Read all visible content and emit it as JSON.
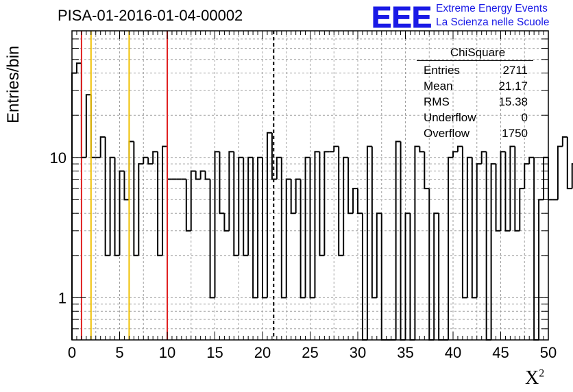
{
  "header": {
    "title": "PISA-01-2016-01-04-00002",
    "logo_mark": "EEE",
    "logo_line1": "Extreme Energy Events",
    "logo_line2": "La Scienza nelle Scuole"
  },
  "stats": {
    "title": "ChiSquare",
    "rows": [
      {
        "label": "Entries",
        "value": "2711"
      },
      {
        "label": "Mean",
        "value": "21.17"
      },
      {
        "label": "RMS",
        "value": "15.38"
      },
      {
        "label": "Underflow",
        "value": "0"
      },
      {
        "label": "Overflow",
        "value": "1750"
      }
    ]
  },
  "colors": {
    "histogram": "#000000",
    "red_line": "#e02020",
    "orange_line": "#f0c000",
    "grid": "#a0a0a0",
    "logo": "#1a1ae6"
  },
  "chart_data": {
    "type": "bar",
    "title": "PISA-01-2016-01-04-00002",
    "xlabel": "X",
    "xlabel_superscript": "2",
    "ylabel": "Entries/bin",
    "xlim": [
      0,
      50
    ],
    "ylim": [
      0.5,
      80
    ],
    "yscale": "log",
    "grid": true,
    "bin_width": 0.5,
    "x_ticks": [
      "0",
      "5",
      "10",
      "15",
      "20",
      "25",
      "30",
      "35",
      "40",
      "45",
      "50"
    ],
    "y_ticks": [
      "1",
      "10"
    ],
    "values": [
      40,
      47,
      10,
      28,
      10,
      10,
      14,
      2,
      10,
      2,
      8,
      5,
      13,
      2,
      9,
      10,
      9,
      11,
      2,
      12,
      7,
      7,
      7,
      7,
      3,
      8,
      7,
      8,
      7,
      1,
      11,
      4,
      3,
      11,
      2,
      10,
      2,
      10,
      1,
      10,
      1,
      15,
      7,
      10,
      1,
      7,
      4,
      7,
      1,
      10,
      1,
      11,
      2,
      11,
      11,
      12,
      2,
      10,
      4,
      6,
      4,
      0,
      12,
      1,
      4,
      0,
      0,
      0,
      13,
      0,
      4,
      0,
      12,
      11,
      6,
      0,
      4,
      0,
      0,
      10,
      11,
      12,
      1,
      10,
      1,
      9,
      11,
      0,
      9,
      3,
      11,
      3,
      12,
      3,
      6,
      9,
      10,
      0,
      5,
      10,
      5,
      5,
      12,
      14,
      6,
      9,
      12,
      10,
      12,
      10,
      10,
      14,
      16,
      6,
      14,
      10,
      12,
      10,
      2,
      7,
      6,
      10,
      1,
      7,
      4,
      7,
      1,
      6,
      2,
      10,
      2,
      12,
      4,
      6,
      4,
      10,
      9,
      6,
      10,
      5,
      9,
      7,
      7,
      6,
      10,
      9,
      9,
      7,
      5,
      5
    ],
    "vertical_lines": [
      {
        "x": 1,
        "color": "red"
      },
      {
        "x": 2,
        "color": "orange"
      },
      {
        "x": 6,
        "color": "orange"
      },
      {
        "x": 10,
        "color": "red"
      },
      {
        "x": 21.17,
        "color": "black",
        "style": "dashed"
      }
    ]
  }
}
